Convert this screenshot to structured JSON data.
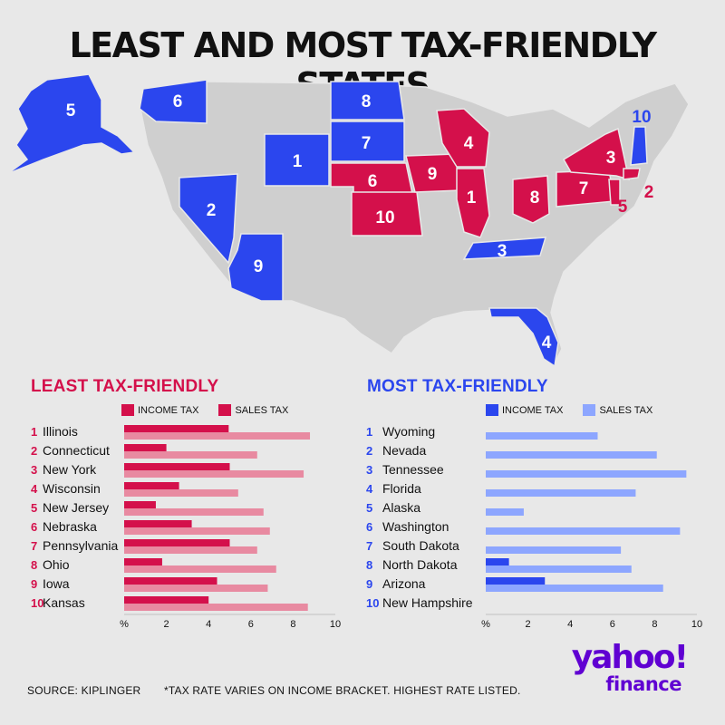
{
  "title": "LEAST AND MOST TAX-FRIENDLY STATES",
  "colors": {
    "least": "#d4104b",
    "least_light": "#e88aa1",
    "most": "#2b46ee",
    "most_light": "#8da6ff",
    "neutral_state": "#cfcfcf",
    "brand": "#6001d2"
  },
  "map_labels": {
    "alaska": "5",
    "washington": "6",
    "north_dakota": "8",
    "south_dakota": "7",
    "wyoming": "1",
    "nevada": "2",
    "arizona": "9",
    "tennessee": "3",
    "florida": "4",
    "new_hampshire": "10",
    "nebraska": "6",
    "kansas": "10",
    "iowa": "9",
    "wisconsin": "4",
    "illinois": "1",
    "ohio": "8",
    "pennsylvania": "7",
    "new_york": "3",
    "connecticut": "2",
    "new_jersey": "5"
  },
  "least": {
    "heading": "LEAST TAX-FRIENDLY",
    "legend_income": "INCOME TAX",
    "legend_sales": "SALES TAX"
  },
  "most": {
    "heading": "MOST TAX-FRIENDLY",
    "legend_income": "INCOME TAX",
    "legend_sales": "SALES TAX"
  },
  "chart_data": [
    {
      "type": "bar",
      "title": "LEAST TAX-FRIENDLY",
      "ranks": [
        "1",
        "2",
        "3",
        "4",
        "5",
        "6",
        "7",
        "8",
        "9",
        "10"
      ],
      "categories": [
        "Illinois",
        "Connecticut",
        "New York",
        "Wisconsin",
        "New Jersey",
        "Nebraska",
        "Pennsylvania",
        "Ohio",
        "Iowa",
        "Kansas"
      ],
      "series": [
        {
          "name": "INCOME TAX",
          "values": [
            4.95,
            2.0,
            5.0,
            2.6,
            1.5,
            3.2,
            5.0,
            1.8,
            4.4,
            4.0
          ]
        },
        {
          "name": "SALES TAX",
          "values": [
            8.8,
            6.3,
            8.5,
            5.4,
            6.6,
            6.9,
            6.3,
            7.2,
            6.8,
            8.7
          ]
        }
      ],
      "xlabel": "%",
      "xticks": [
        "%",
        "2",
        "4",
        "6",
        "8",
        "10"
      ],
      "xlim": [
        0,
        10
      ]
    },
    {
      "type": "bar",
      "title": "MOST TAX-FRIENDLY",
      "ranks": [
        "1",
        "2",
        "3",
        "4",
        "5",
        "6",
        "7",
        "8",
        "9",
        "10"
      ],
      "categories": [
        "Wyoming",
        "Nevada",
        "Tennessee",
        "Florida",
        "Alaska",
        "Washington",
        "South Dakota",
        "North Dakota",
        "Arizona",
        "New Hampshire"
      ],
      "series": [
        {
          "name": "INCOME TAX",
          "values": [
            0,
            0,
            0,
            0,
            0,
            0,
            0,
            1.1,
            2.8,
            0
          ]
        },
        {
          "name": "SALES TAX",
          "values": [
            5.3,
            8.1,
            9.5,
            7.1,
            1.8,
            9.2,
            6.4,
            6.9,
            8.4,
            0
          ]
        }
      ],
      "xlabel": "%",
      "xticks": [
        "%",
        "2",
        "4",
        "6",
        "8",
        "10"
      ],
      "xlim": [
        0,
        10
      ]
    }
  ],
  "footer": {
    "source": "SOURCE: KIPLINGER",
    "note": "*TAX RATE VARIES ON INCOME BRACKET. HIGHEST RATE LISTED."
  },
  "logo": {
    "line1": "yahoo!",
    "line2": "finance"
  }
}
